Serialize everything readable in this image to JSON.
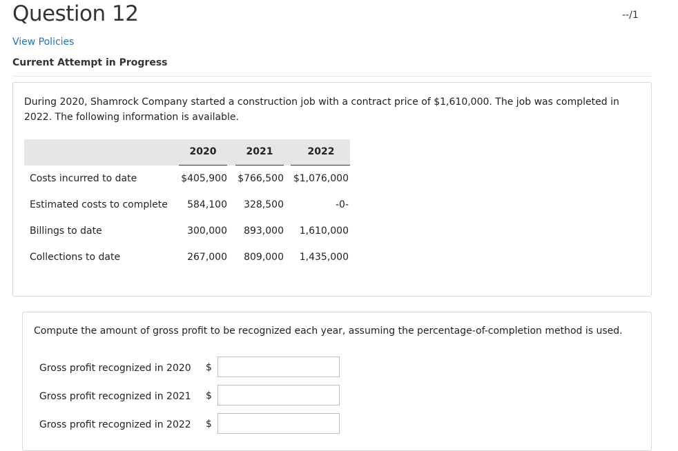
{
  "header": {
    "title": "Question 12",
    "score": "--/1",
    "view_policies": "View Policies",
    "attempt_status": "Current Attempt in Progress"
  },
  "problem": {
    "text": "During 2020, Shamrock Company started a construction job with a contract price of $1,610,000. The job was completed in 2022. The following information is available.",
    "table": {
      "headers": [
        "2020",
        "2021",
        "2022"
      ],
      "rows": [
        {
          "label": "Costs incurred to date",
          "values": [
            "$405,900",
            "$766,500",
            "$1,076,000"
          ]
        },
        {
          "label": "Estimated costs to complete",
          "values": [
            "584,100",
            "328,500",
            "-0-"
          ]
        },
        {
          "label": "Billings to date",
          "values": [
            "300,000",
            "893,000",
            "1,610,000"
          ]
        },
        {
          "label": "Collections to date",
          "values": [
            "267,000",
            "809,000",
            "1,435,000"
          ]
        }
      ]
    }
  },
  "answer_section": {
    "question": "Compute the amount of gross profit to be recognized each year, assuming the percentage-of-completion method is used.",
    "currency_symbol": "$",
    "fields": [
      {
        "label": "Gross profit recognized in 2020",
        "value": ""
      },
      {
        "label": "Gross profit recognized in 2021",
        "value": ""
      },
      {
        "label": "Gross profit recognized in 2022",
        "value": ""
      }
    ]
  }
}
